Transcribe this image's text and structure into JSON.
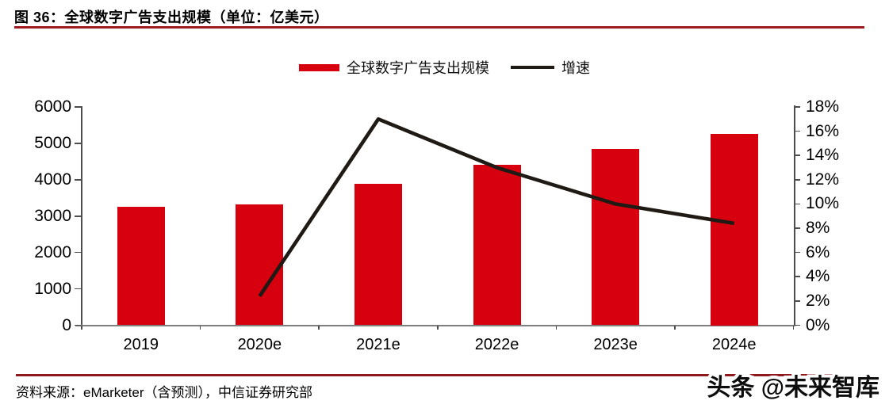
{
  "figure": {
    "title": "图 36：全球数字广告支出规模（单位：亿美元）",
    "source": "资料来源：eMarketer（含预测），中信证券研究部",
    "watermark": "头条 @未来智库"
  },
  "legend": {
    "bars_label": "全球数字广告支出规模",
    "line_label": "增速"
  },
  "colors": {
    "bar": "#d7000f",
    "line": "#201a14",
    "title_rule": "#a01b1f",
    "footer_rule": "#8e191d",
    "axis": "#4d4d4d"
  },
  "chart_data": {
    "type": "bar",
    "subtype": "bar+line-combo",
    "title": "全球数字广告支出规模（单位：亿美元）",
    "categories": [
      "2019",
      "2020e",
      "2021e",
      "2022e",
      "2023e",
      "2024e"
    ],
    "series": [
      {
        "name": "全球数字广告支出规模",
        "type": "bar",
        "axis": "left",
        "unit": "亿美元",
        "values": [
          3250,
          3330,
          3890,
          4410,
          4850,
          5250
        ]
      },
      {
        "name": "增速",
        "type": "line",
        "axis": "right",
        "unit": "%",
        "values": [
          null,
          2.4,
          17.0,
          13.0,
          10.0,
          8.4
        ]
      }
    ],
    "left_axis": {
      "min": 0,
      "max": 6000,
      "step": 1000,
      "tick_labels": [
        "0",
        "1000",
        "2000",
        "3000",
        "4000",
        "5000",
        "6000"
      ]
    },
    "right_axis": {
      "min": 0,
      "max": 18,
      "step": 2,
      "tick_labels": [
        "0%",
        "2%",
        "4%",
        "6%",
        "8%",
        "10%",
        "12%",
        "14%",
        "16%",
        "18%"
      ]
    },
    "grid": false,
    "legend_position": "top-center"
  }
}
